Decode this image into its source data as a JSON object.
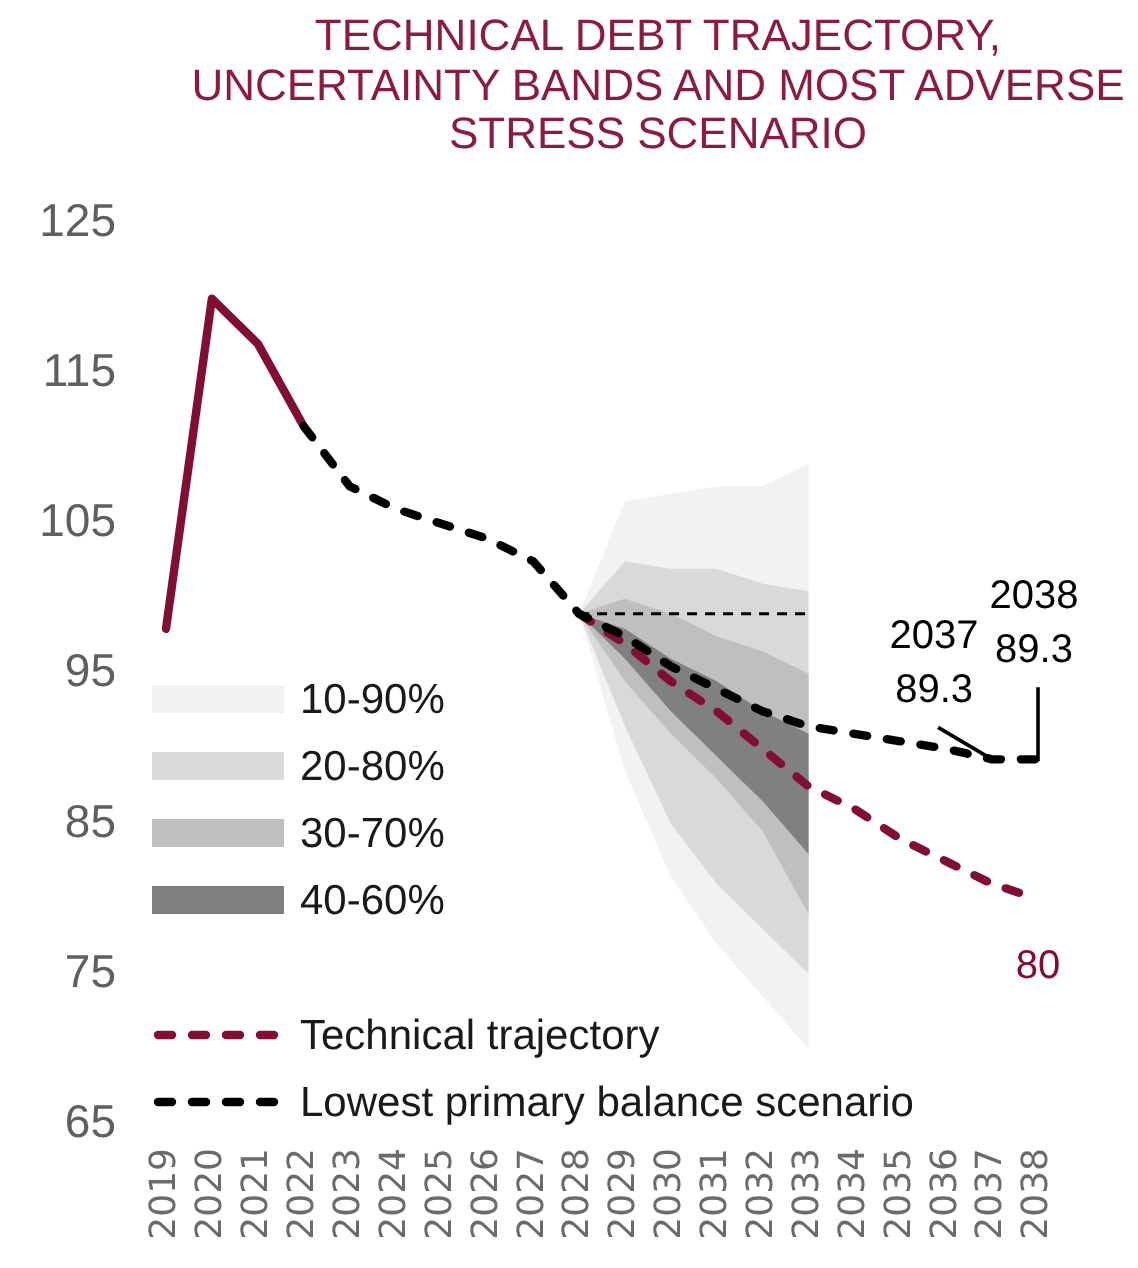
{
  "chart_data": {
    "type": "line",
    "title": "TECHNICAL DEBT TRAJECTORY, UNCERTAINTY BANDS AND MOST ADVERSE STRESS SCENARIO",
    "categories": [
      "2019",
      "2020",
      "2021",
      "2022",
      "2023",
      "2024",
      "2025",
      "2026",
      "2027",
      "2028",
      "2029",
      "2030",
      "2031",
      "2032",
      "2033",
      "2034",
      "2035",
      "2036",
      "2037",
      "2038"
    ],
    "ylim": [
      65,
      125
    ],
    "yticks": [
      65,
      75,
      85,
      95,
      105,
      115,
      125
    ],
    "grid": false,
    "legend": "bottom left",
    "marker": "none",
    "series": [
      {
        "name": "10-90%",
        "type": "area",
        "color": "#f2f2f2",
        "values": [
          null,
          null,
          null,
          null,
          null,
          null,
          null,
          null,
          null,
          null,
          null,
          null,
          null,
          null,
          null,
          null,
          null,
          null,
          null,
          null
        ],
        "lower": [
          null,
          null,
          null,
          null,
          null,
          null,
          null,
          null,
          null,
          99,
          88.5,
          81.5,
          77,
          73.5,
          70,
          null,
          null,
          null,
          null,
          null
        ],
        "upper": [
          null,
          null,
          null,
          null,
          null,
          null,
          null,
          null,
          null,
          99,
          106.5,
          107,
          107.5,
          107.5,
          109,
          null,
          null,
          null,
          null,
          null
        ]
      },
      {
        "name": "20-80%",
        "type": "area",
        "color": "#d9d9d9",
        "values": [
          null,
          null,
          null,
          null,
          null,
          null,
          null,
          null,
          null,
          null,
          null,
          null,
          null,
          null,
          null,
          null,
          null,
          null,
          null,
          null
        ],
        "lower": [
          null,
          null,
          null,
          null,
          null,
          null,
          null,
          null,
          null,
          99,
          91.5,
          85,
          81,
          78,
          75,
          null,
          null,
          null,
          null,
          null
        ],
        "upper": [
          null,
          null,
          null,
          null,
          null,
          null,
          null,
          null,
          null,
          99,
          102.5,
          102,
          102,
          101,
          100.5,
          null,
          null,
          null,
          null,
          null
        ]
      },
      {
        "name": "30-70%",
        "type": "area",
        "color": "#bfbfbf",
        "values": [
          null,
          null,
          null,
          null,
          null,
          null,
          null,
          null,
          null,
          null,
          null,
          null,
          null,
          null,
          null,
          null,
          null,
          null,
          null,
          null
        ],
        "lower": [
          null,
          null,
          null,
          null,
          null,
          null,
          null,
          null,
          null,
          99,
          94.5,
          91,
          88,
          84.5,
          79,
          null,
          null,
          null,
          null,
          null
        ],
        "upper": [
          null,
          null,
          null,
          null,
          null,
          null,
          null,
          null,
          null,
          99,
          100,
          99,
          97.5,
          96.5,
          95,
          null,
          null,
          null,
          null,
          null
        ]
      },
      {
        "name": "40-60%",
        "type": "area",
        "color": "#808080",
        "values": [
          null,
          null,
          null,
          null,
          null,
          null,
          null,
          null,
          null,
          null,
          null,
          null,
          null,
          null,
          null,
          null,
          null,
          null,
          null,
          null
        ],
        "lower": [
          null,
          null,
          null,
          null,
          null,
          null,
          null,
          null,
          null,
          99,
          96,
          92.5,
          89.5,
          86.5,
          83,
          null,
          null,
          null,
          null,
          null
        ],
        "upper": [
          null,
          null,
          null,
          null,
          null,
          null,
          null,
          null,
          null,
          99,
          98,
          96,
          94.5,
          92.5,
          91,
          null,
          null,
          null,
          null,
          null
        ]
      },
      {
        "type": "line",
        "color": "#800f32",
        "line_style": "solid",
        "values": [
          98,
          120,
          117,
          111.5,
          null,
          null,
          null,
          null,
          null,
          null,
          null,
          null,
          null,
          null,
          null,
          null,
          null,
          null,
          null,
          null
        ]
      },
      {
        "name": "Technical trajectory",
        "type": "line",
        "color": "#800f32",
        "line_style": "dashed",
        "values": [
          null,
          null,
          null,
          null,
          null,
          null,
          null,
          null,
          null,
          99,
          97,
          94.5,
          92.5,
          90,
          87.5,
          86,
          84,
          82.5,
          81,
          80
        ],
        "value_labels": [
          null,
          null,
          null,
          null,
          null,
          null,
          null,
          null,
          null,
          null,
          null,
          null,
          null,
          null,
          null,
          null,
          null,
          null,
          null,
          "80"
        ]
      },
      {
        "type": "line",
        "color": "#000000",
        "line_style": "dashed",
        "values": [
          null,
          null,
          null,
          null,
          null,
          null,
          null,
          null,
          null,
          99,
          99,
          99,
          99,
          99,
          99,
          null,
          null,
          null,
          null,
          null
        ]
      },
      {
        "name": "Lowest primary balance scenario",
        "type": "line",
        "color": "#000000",
        "line_style": "dashed",
        "values": [
          null,
          null,
          null,
          111.5,
          107.5,
          106,
          105,
          104,
          102.5,
          99,
          97.5,
          95.5,
          94,
          92.5,
          91.5,
          91,
          90.5,
          90,
          89.3,
          89.3
        ]
      }
    ],
    "annotations": [
      {
        "text": "2037\n89.3",
        "x": "2037",
        "y": 89.3
      },
      {
        "text": "2038\n89.3",
        "x": "2038",
        "y": 89.3
      }
    ]
  }
}
